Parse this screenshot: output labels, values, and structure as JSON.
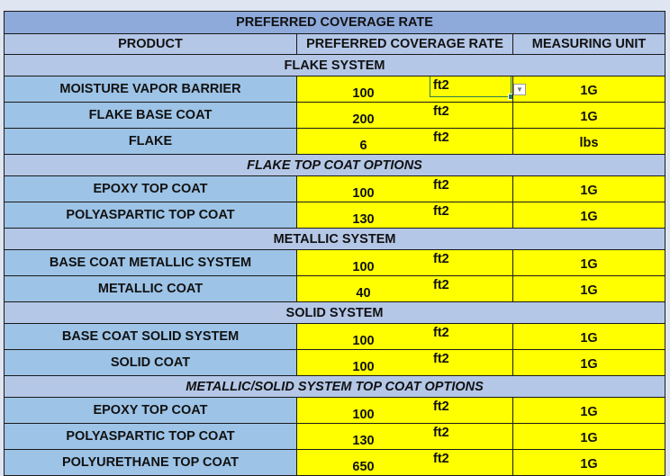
{
  "title": "PREFERRED COVERAGE RATE",
  "headers": [
    "PRODUCT",
    "PREFERRED COVERAGE RATE",
    "MEASURING UNIT"
  ],
  "rows": [
    {
      "type": "section",
      "label": "FLAKE SYSTEM"
    },
    {
      "type": "item",
      "product": "MOISTURE VAPOR BARRIER",
      "rate": "100",
      "rate_unit": "ft2",
      "unit": "1G"
    },
    {
      "type": "item",
      "product": "FLAKE BASE COAT",
      "rate": "200",
      "rate_unit": "ft2",
      "unit": "1G"
    },
    {
      "type": "item",
      "product": "FLAKE",
      "rate": "6",
      "rate_unit": "ft2",
      "unit": "lbs"
    },
    {
      "type": "section",
      "label": "FLAKE TOP COAT OPTIONS",
      "style": "red"
    },
    {
      "type": "item",
      "product": "EPOXY TOP COAT",
      "rate": "100",
      "rate_unit": "ft2",
      "unit": "1G"
    },
    {
      "type": "item",
      "product": "POLYASPARTIC TOP COAT",
      "rate": "130",
      "rate_unit": "ft2",
      "unit": "1G"
    },
    {
      "type": "section",
      "label": "METALLIC SYSTEM"
    },
    {
      "type": "item",
      "product": "BASE COAT METALLIC SYSTEM",
      "rate": "100",
      "rate_unit": "ft2",
      "unit": "1G"
    },
    {
      "type": "item",
      "product": "METALLIC COAT",
      "rate": "40",
      "rate_unit": "ft2",
      "unit": "1G"
    },
    {
      "type": "section",
      "label": "SOLID SYSTEM"
    },
    {
      "type": "item",
      "product": "BASE COAT SOLID SYSTEM",
      "rate": "100",
      "rate_unit": "ft2",
      "unit": "1G"
    },
    {
      "type": "item",
      "product": "SOLID COAT",
      "rate": "100",
      "rate_unit": "ft2",
      "unit": "1G"
    },
    {
      "type": "section",
      "label": "METALLIC/SOLID SYSTEM TOP COAT OPTIONS",
      "style": "red"
    },
    {
      "type": "item",
      "product": "EPOXY TOP COAT",
      "rate": "100",
      "rate_unit": "ft2",
      "unit": "1G"
    },
    {
      "type": "item",
      "product": "POLYASPARTIC TOP COAT",
      "rate": "130",
      "rate_unit": "ft2",
      "unit": "1G"
    },
    {
      "type": "item",
      "product": "POLYURETHANE TOP COAT",
      "rate": "650",
      "rate_unit": "ft2",
      "unit": "1G"
    }
  ],
  "colors": {
    "title_bg": "#8eaadb",
    "header_bg": "#b4c7e7",
    "product_bg": "#9dc3e6",
    "value_bg": "#ffff00",
    "section_red": "#e0001b",
    "selection": "#2e7d4f"
  },
  "dropdown_icon": "chevron-down-icon"
}
